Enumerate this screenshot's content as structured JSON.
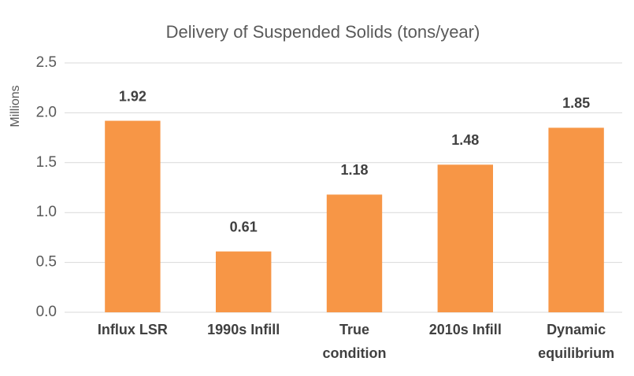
{
  "chart_data": {
    "type": "bar",
    "title": "Delivery of Suspended Solids (tons/year)",
    "y_label": "Millions",
    "categories": [
      "Influx LSR",
      "1990s Infill",
      "True condition",
      "2010s Infill",
      "Dynamic equilibrium"
    ],
    "values": [
      1.92,
      0.61,
      1.18,
      1.48,
      1.85
    ],
    "color": "#f79646",
    "ylim": [
      0,
      2.5
    ],
    "yticks": [
      {
        "value": 0,
        "label": "0.0"
      },
      0.5,
      {
        "value": 1,
        "label": "1.0"
      },
      1.5,
      {
        "value": 2,
        "label": "2.0"
      },
      2.5
    ],
    "grid": true
  }
}
